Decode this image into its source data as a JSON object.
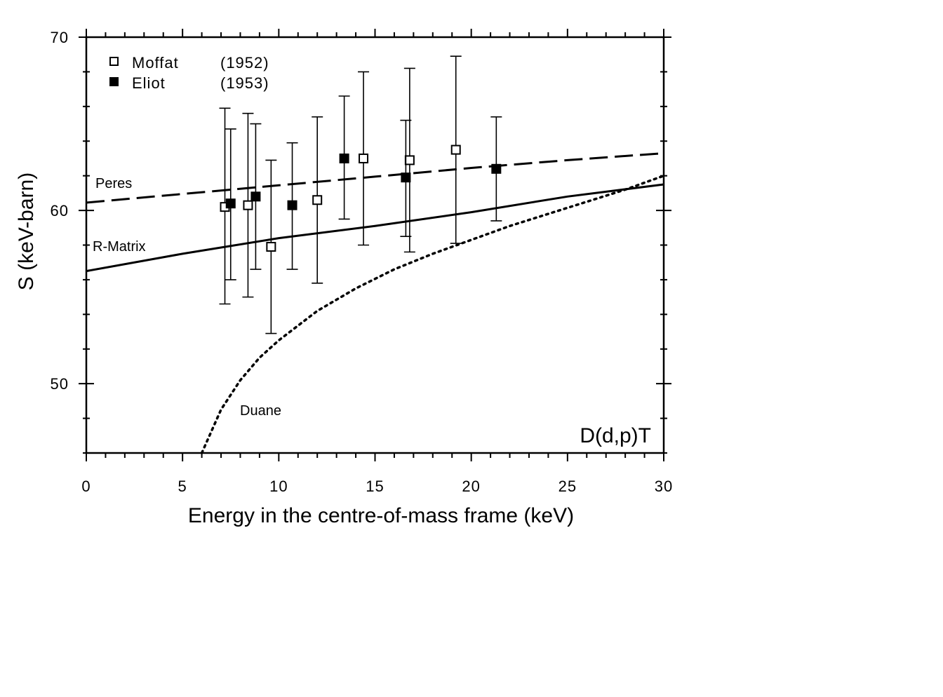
{
  "chart_data": {
    "type": "scatter",
    "xlabel": "Energy in the centre-of-mass frame (keV)",
    "ylabel": "S  (keV-barn)",
    "xlim": [
      0,
      30
    ],
    "ylim": [
      46,
      70
    ],
    "x_ticks": [
      0,
      5,
      10,
      15,
      20,
      25,
      30
    ],
    "x_tick_labels": [
      "0",
      "5",
      "10",
      "15",
      "20",
      "25",
      "30"
    ],
    "y_ticks": [
      50,
      60,
      70
    ],
    "y_tick_labels": [
      "50",
      "60",
      "70"
    ],
    "grid": false,
    "legend_position": "top-left",
    "annotation": "D(d,p)T",
    "legend": [
      {
        "name": "Moffat",
        "year": "(1952)",
        "marker": "open-square"
      },
      {
        "name": "Eliot",
        "year": "(1953)",
        "marker": "filled-square"
      }
    ],
    "series": [
      {
        "name": "Moffat",
        "marker": "open-square",
        "points": [
          {
            "x": 7.2,
            "y": 60.2,
            "ylow": 54.6,
            "yhigh": 65.9
          },
          {
            "x": 8.4,
            "y": 60.3,
            "ylow": 55.0,
            "yhigh": 65.6
          },
          {
            "x": 9.6,
            "y": 57.9,
            "ylow": 52.9,
            "yhigh": 62.9
          },
          {
            "x": 12.0,
            "y": 60.6,
            "ylow": 55.8,
            "yhigh": 65.4
          },
          {
            "x": 14.4,
            "y": 63.0,
            "ylow": 58.0,
            "yhigh": 68.0
          },
          {
            "x": 16.8,
            "y": 62.9,
            "ylow": 57.6,
            "yhigh": 68.2
          },
          {
            "x": 19.2,
            "y": 63.5,
            "ylow": 58.1,
            "yhigh": 68.9
          }
        ]
      },
      {
        "name": "Eliot",
        "marker": "filled-square",
        "points": [
          {
            "x": 7.5,
            "y": 60.4,
            "ylow": 56.0,
            "yhigh": 64.7
          },
          {
            "x": 8.8,
            "y": 60.8,
            "ylow": 56.6,
            "yhigh": 65.0
          },
          {
            "x": 10.7,
            "y": 60.3,
            "ylow": 56.6,
            "yhigh": 63.9
          },
          {
            "x": 13.4,
            "y": 63.0,
            "ylow": 59.5,
            "yhigh": 66.6
          },
          {
            "x": 16.6,
            "y": 61.9,
            "ylow": 58.5,
            "yhigh": 65.2
          },
          {
            "x": 21.3,
            "y": 62.4,
            "ylow": 59.4,
            "yhigh": 65.4
          }
        ]
      }
    ],
    "curves": [
      {
        "name": "Peres",
        "style": "dashed",
        "x": [
          0,
          5,
          10,
          15,
          20,
          25,
          30
        ],
        "y": [
          60.45,
          60.95,
          61.45,
          61.95,
          62.45,
          62.9,
          63.3
        ]
      },
      {
        "name": "R-Matrix",
        "style": "solid",
        "x": [
          0,
          5,
          10,
          15,
          20,
          25,
          30
        ],
        "y": [
          56.5,
          57.5,
          58.4,
          59.1,
          59.9,
          60.8,
          61.5
        ]
      },
      {
        "name": "Duane",
        "style": "dotted",
        "x": [
          6.0,
          7.0,
          8.0,
          9.0,
          10.0,
          12.0,
          14.0,
          16.0,
          18.0,
          20.0,
          22.0,
          24.0,
          26.0,
          28.0,
          30.0
        ],
        "y": [
          46.0,
          48.5,
          50.2,
          51.5,
          52.5,
          54.2,
          55.5,
          56.6,
          57.5,
          58.3,
          59.1,
          59.8,
          60.5,
          61.2,
          62.0
        ]
      }
    ]
  }
}
